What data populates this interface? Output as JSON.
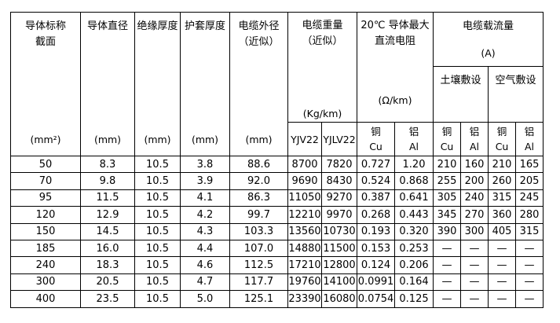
{
  "page": {
    "background_color": "#ffffff",
    "border_color": "#000000",
    "text_color": "#000000"
  },
  "table": {
    "simple_columns": [
      {
        "title_lines": [
          "导体标称",
          "截面"
        ],
        "unit": "(mm²)"
      },
      {
        "title_lines": [
          "导体直径"
        ],
        "unit": "(mm)"
      },
      {
        "title_lines": [
          "绝缘厚度"
        ],
        "unit": "(mm)"
      },
      {
        "title_lines": [
          "护套厚度"
        ],
        "unit": "(mm)"
      },
      {
        "title_lines": [
          "电缆外径",
          "（近似）"
        ],
        "unit": "(mm)"
      }
    ],
    "weight_group": {
      "title_lines": [
        "电缆重量",
        "（近似）"
      ],
      "unit": "(Kg/km)",
      "sub_columns": [
        "YJV22",
        "YJLV22"
      ]
    },
    "resistance_group": {
      "title_lines": [
        "20℃ 导体最大",
        "直流电阻"
      ],
      "unit": "(Ω/km)",
      "sub_columns": [
        {
          "zh": "铜",
          "en": "Cu"
        },
        {
          "zh": "铝",
          "en": "Al"
        }
      ]
    },
    "ampacity_group": {
      "title": "电缆载流量",
      "unit": "(A)",
      "lay_methods": [
        "土壤敷设",
        "空气敷设"
      ],
      "sub_columns": [
        {
          "zh": "铜",
          "en": "Cu"
        },
        {
          "zh": "铝",
          "en": "Al"
        },
        {
          "zh": "铜",
          "en": "Cu"
        },
        {
          "zh": "铝",
          "en": "Al"
        }
      ]
    },
    "rows": [
      [
        "50",
        "8.3",
        "10.5",
        "3.8",
        "88.6",
        "8700",
        "7820",
        "0.727",
        "1.20",
        "210",
        "160",
        "210",
        "165"
      ],
      [
        "70",
        "9.8",
        "10.5",
        "3.9",
        "92.0",
        "9690",
        "8430",
        "0.524",
        "0.868",
        "255",
        "200",
        "260",
        "205"
      ],
      [
        "95",
        "11.5",
        "10.5",
        "4.1",
        "86.3",
        "11050",
        "9270",
        "0.387",
        "0.641",
        "305",
        "240",
        "315",
        "245"
      ],
      [
        "120",
        "12.9",
        "10.5",
        "4.2",
        "99.7",
        "12210",
        "9970",
        "0.268",
        "0.443",
        "345",
        "270",
        "360",
        "280"
      ],
      [
        "150",
        "14.5",
        "10.5",
        "4.3",
        "103.3",
        "13560",
        "10730",
        "0.193",
        "0.320",
        "390",
        "300",
        "405",
        "315"
      ],
      [
        "185",
        "16.0",
        "10.5",
        "4.4",
        "107.0",
        "14880",
        "11500",
        "0.153",
        "0.253",
        "—",
        "—",
        "—",
        "—"
      ],
      [
        "240",
        "18.3",
        "10.5",
        "4.6",
        "112.5",
        "17210",
        "12800",
        "0.124",
        "0.206",
        "—",
        "—",
        "—",
        "—"
      ],
      [
        "300",
        "20.5",
        "10.5",
        "4.7",
        "117.7",
        "19760",
        "14100",
        "0.0991",
        "0.164",
        "—",
        "—",
        "—",
        "—"
      ],
      [
        "400",
        "23.5",
        "10.5",
        "5.0",
        "125.1",
        "23390",
        "16080",
        "0.0754",
        "0.125",
        "—",
        "—",
        "—",
        "—"
      ]
    ],
    "right_aligned_cells": [
      [
        2,
        4
      ]
    ]
  }
}
